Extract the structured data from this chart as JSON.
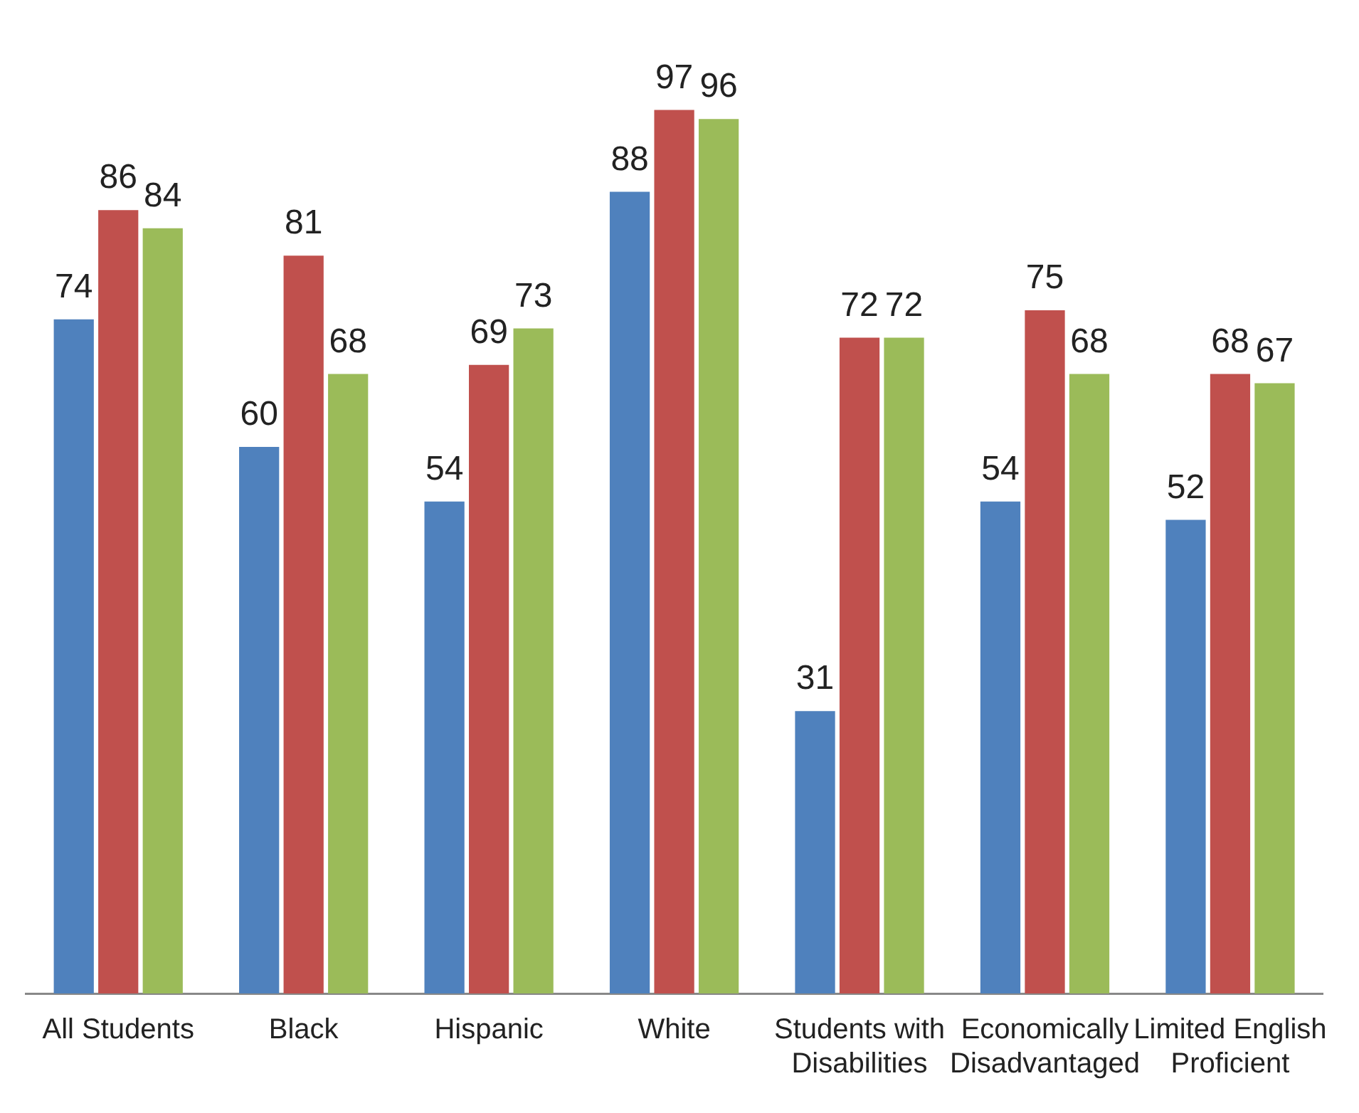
{
  "chart_data": {
    "type": "bar",
    "categories": [
      "All Students",
      "Black",
      "Hispanic",
      "White",
      "Students with Disabilities",
      "Economically Disadvantaged",
      "Limited English Proficient"
    ],
    "series": [
      {
        "color": "#4f81bd",
        "values": [
          74,
          60,
          54,
          88,
          31,
          54,
          52
        ]
      },
      {
        "color": "#c0504d",
        "values": [
          86,
          81,
          69,
          97,
          72,
          75,
          68
        ]
      },
      {
        "color": "#9bbb59",
        "values": [
          84,
          68,
          73,
          96,
          72,
          68,
          67
        ]
      }
    ],
    "data_labels": true,
    "grid": false,
    "legend": false
  }
}
